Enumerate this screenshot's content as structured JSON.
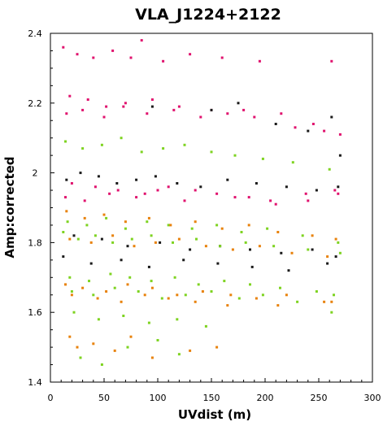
{
  "chart_data": {
    "type": "scatter",
    "title": "VLA_J1224+2122",
    "xlabel": "UVdist (m)",
    "ylabel": "Amp:corrected",
    "xlim": [
      0,
      300
    ],
    "ylim": [
      1.4,
      2.4
    ],
    "xticks": [
      0,
      50,
      100,
      150,
      200,
      250,
      300
    ],
    "xtick_labels": [
      "0",
      "50",
      "100",
      "150",
      "200",
      "250",
      "300"
    ],
    "yticks": [
      1.4,
      1.6,
      1.8,
      2.0,
      2.2,
      2.4
    ],
    "ytick_labels": [
      "1.4",
      "1.6",
      "1.8",
      "2",
      "2.2",
      "2.4"
    ],
    "grid": false,
    "legend": "none",
    "colors": [
      "#e0126e",
      "#1a1a1a",
      "#7ed321",
      "#e8820c"
    ],
    "series": [
      {
        "color": "#e0126e",
        "x": [
          12,
          25,
          40,
          58,
          75,
          85,
          105,
          130,
          160,
          195,
          262,
          18,
          35,
          52,
          70,
          95,
          120,
          150,
          180,
          215,
          245,
          15,
          30,
          50,
          68,
          90,
          115,
          140,
          165,
          190,
          228,
          255,
          270,
          20,
          42,
          63,
          88,
          110,
          135,
          172,
          205,
          238,
          265,
          14,
          32,
          55,
          80,
          100,
          125,
          155,
          185,
          210,
          240,
          268
        ],
        "y": [
          2.36,
          2.34,
          2.33,
          2.35,
          2.33,
          2.38,
          2.32,
          2.34,
          2.33,
          2.32,
          2.32,
          2.22,
          2.21,
          2.19,
          2.2,
          2.21,
          2.19,
          2.18,
          2.18,
          2.17,
          2.14,
          2.17,
          2.18,
          2.16,
          2.19,
          2.17,
          2.18,
          2.16,
          2.17,
          2.16,
          2.13,
          2.12,
          2.11,
          1.97,
          1.96,
          1.95,
          1.94,
          1.96,
          1.95,
          1.93,
          1.92,
          1.94,
          1.95,
          1.93,
          1.92,
          1.94,
          1.93,
          1.95,
          1.92,
          1.94,
          1.93,
          1.91,
          1.92,
          1.94
        ]
      },
      {
        "color": "#1a1a1a",
        "x": [
          95,
          150,
          175,
          210,
          240,
          262,
          270,
          15,
          28,
          45,
          62,
          80,
          98,
          118,
          140,
          165,
          192,
          220,
          248,
          268,
          22,
          48,
          72,
          102,
          130,
          158,
          186,
          215,
          244,
          266,
          12,
          38,
          66,
          92,
          124,
          156,
          188,
          222,
          258
        ],
        "y": [
          2.19,
          2.18,
          2.2,
          2.14,
          2.12,
          2.16,
          2.05,
          1.98,
          2.0,
          1.99,
          1.97,
          1.98,
          1.99,
          1.97,
          1.96,
          1.98,
          1.97,
          1.96,
          1.95,
          1.96,
          1.82,
          1.81,
          1.79,
          1.8,
          1.78,
          1.79,
          1.78,
          1.77,
          1.78,
          1.76,
          1.76,
          1.74,
          1.75,
          1.73,
          1.75,
          1.74,
          1.73,
          1.72,
          1.74
        ]
      },
      {
        "color": "#7ed321",
        "x": [
          14,
          30,
          48,
          66,
          85,
          105,
          125,
          150,
          172,
          198,
          226,
          260,
          16,
          34,
          52,
          70,
          90,
          110,
          132,
          155,
          178,
          202,
          235,
          268,
          12,
          26,
          42,
          58,
          76,
          94,
          114,
          136,
          158,
          182,
          208,
          240,
          270,
          18,
          36,
          56,
          74,
          94,
          116,
          138,
          162,
          186,
          214,
          248,
          264,
          20,
          40,
          60,
          82,
          104,
          126,
          150,
          176,
          198,
          230,
          262,
          22,
          45,
          68,
          92,
          118,
          145,
          28,
          48,
          72,
          100,
          120
        ],
        "y": [
          2.09,
          2.07,
          2.08,
          2.1,
          2.06,
          2.07,
          2.08,
          2.06,
          2.05,
          2.04,
          2.03,
          2.01,
          1.86,
          1.85,
          1.87,
          1.84,
          1.86,
          1.85,
          1.84,
          1.85,
          1.83,
          1.84,
          1.82,
          1.8,
          1.83,
          1.81,
          1.82,
          1.8,
          1.81,
          1.82,
          1.8,
          1.81,
          1.79,
          1.8,
          1.79,
          1.78,
          1.77,
          1.7,
          1.69,
          1.71,
          1.7,
          1.69,
          1.7,
          1.68,
          1.69,
          1.68,
          1.67,
          1.66,
          1.65,
          1.66,
          1.65,
          1.67,
          1.66,
          1.64,
          1.65,
          1.66,
          1.64,
          1.65,
          1.63,
          1.6,
          1.6,
          1.58,
          1.59,
          1.57,
          1.58,
          1.56,
          1.47,
          1.45,
          1.5,
          1.52,
          1.48
        ]
      },
      {
        "color": "#e8820c",
        "x": [
          15,
          32,
          50,
          70,
          92,
          112,
          135,
          160,
          185,
          212,
          244,
          266,
          18,
          38,
          58,
          78,
          98,
          120,
          145,
          170,
          195,
          225,
          258,
          14,
          30,
          52,
          72,
          95,
          118,
          142,
          168,
          192,
          220,
          255,
          20,
          44,
          66,
          88,
          110,
          135,
          165,
          212,
          262,
          18,
          25,
          40,
          60,
          75,
          95,
          130,
          155
        ],
        "y": [
          1.89,
          1.87,
          1.88,
          1.86,
          1.87,
          1.85,
          1.86,
          1.84,
          1.85,
          1.83,
          1.82,
          1.81,
          1.81,
          1.8,
          1.82,
          1.79,
          1.8,
          1.81,
          1.79,
          1.78,
          1.79,
          1.77,
          1.76,
          1.68,
          1.67,
          1.66,
          1.68,
          1.67,
          1.65,
          1.66,
          1.65,
          1.64,
          1.65,
          1.63,
          1.65,
          1.64,
          1.63,
          1.65,
          1.64,
          1.63,
          1.62,
          1.62,
          1.63,
          1.53,
          1.5,
          1.51,
          1.49,
          1.53,
          1.47,
          1.49,
          1.5
        ]
      }
    ]
  }
}
